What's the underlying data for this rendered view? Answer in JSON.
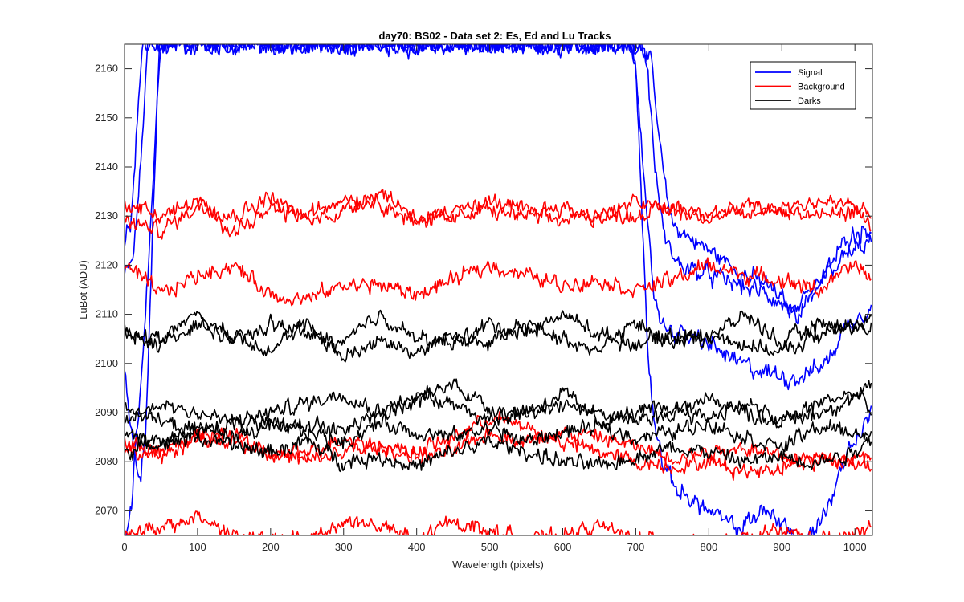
{
  "chart_data": {
    "type": "line",
    "title": "day70: BS02 - Data set 2: Es, Ed and Lu Tracks",
    "xlabel": "Wavelength (pixels)",
    "ylabel": "LuBot (ADU)",
    "xlim": [
      0,
      1024
    ],
    "ylim": [
      2065,
      2165
    ],
    "xticks": [
      0,
      100,
      200,
      300,
      400,
      500,
      600,
      700,
      800,
      900,
      1000
    ],
    "yticks": [
      2070,
      2080,
      2090,
      2100,
      2110,
      2120,
      2130,
      2140,
      2150,
      2160
    ],
    "grid": false,
    "legend_position": "top-right",
    "legend": [
      {
        "label": "Signal",
        "color": "#0000ff"
      },
      {
        "label": "Background",
        "color": "#ff0000"
      },
      {
        "label": "Darks",
        "color": "#000000"
      }
    ],
    "series": [
      {
        "name": "Signal",
        "color": "#0000ff",
        "x": [
          0,
          12,
          22,
          32,
          40,
          48,
          60,
          70,
          100,
          700,
          712,
          722,
          732,
          742,
          752,
          780,
          810,
          850,
          880,
          920,
          960,
          990,
          1024
        ],
        "values": [
          2118,
          2121,
          2140,
          2165,
          2165,
          2165,
          2165,
          2165,
          2165,
          2165,
          2165,
          2160,
          2145,
          2134,
          2128,
          2125,
          2122,
          2118,
          2116,
          2110,
          2118,
          2126,
          2128
        ]
      },
      {
        "name": "Signal",
        "color": "#0000ff",
        "x": [
          0,
          10,
          18,
          26,
          34,
          44,
          56,
          66,
          700,
          708,
          716,
          726,
          740,
          760,
          800,
          840,
          880,
          920,
          960,
          990,
          1024
        ],
        "values": [
          2124,
          2130,
          2150,
          2165,
          2165,
          2165,
          2165,
          2165,
          2165,
          2165,
          2160,
          2140,
          2125,
          2120,
          2118,
          2116,
          2114,
          2110,
          2118,
          2122,
          2125
        ]
      },
      {
        "name": "Signal",
        "color": "#0000ff",
        "x": [
          0,
          6,
          14,
          22,
          30,
          38,
          48,
          690,
          700,
          706,
          714,
          724,
          736,
          760,
          800,
          840,
          880,
          920,
          960,
          990,
          1024
        ],
        "values": [
          2098,
          2090,
          2080,
          2075,
          2090,
          2125,
          2165,
          2165,
          2162,
          2150,
          2130,
          2115,
          2108,
          2106,
          2104,
          2100,
          2098,
          2097,
          2100,
          2108,
          2112
        ]
      },
      {
        "name": "Signal",
        "color": "#0000ff",
        "x": [
          0,
          5,
          10,
          16,
          24,
          36,
          50,
          690,
          700,
          706,
          712,
          718,
          726,
          740,
          760,
          800,
          840,
          870,
          900,
          930,
          960,
          990,
          1024
        ],
        "values": [
          2064,
          2066,
          2072,
          2085,
          2100,
          2130,
          2165,
          2165,
          2160,
          2140,
          2118,
          2100,
          2088,
          2078,
          2074,
          2070,
          2066,
          2070,
          2068,
          2063,
          2070,
          2082,
          2090
        ]
      },
      {
        "name": "Background",
        "color": "#ff0000",
        "x": [
          0,
          50,
          100,
          150,
          200,
          250,
          300,
          350,
          400,
          450,
          500,
          550,
          600,
          650,
          700,
          750,
          800,
          850,
          900,
          950,
          1000,
          1024
        ],
        "values": [
          2133,
          2130,
          2133,
          2127,
          2131,
          2130,
          2134,
          2133,
          2128,
          2132,
          2131,
          2130,
          2129,
          2131,
          2130,
          2132,
          2131,
          2130,
          2132,
          2133,
          2132,
          2130
        ]
      },
      {
        "name": "Background",
        "color": "#ff0000",
        "x": [
          0,
          50,
          100,
          150,
          200,
          250,
          300,
          350,
          400,
          450,
          500,
          550,
          600,
          650,
          700,
          750,
          800,
          850,
          900,
          950,
          1000,
          1024
        ],
        "values": [
          2129,
          2127,
          2132,
          2130,
          2134,
          2129,
          2131,
          2135,
          2130,
          2129,
          2133,
          2131,
          2132,
          2129,
          2133,
          2131,
          2129,
          2132,
          2131,
          2130,
          2131,
          2128
        ]
      },
      {
        "name": "Background",
        "color": "#ff0000",
        "x": [
          0,
          50,
          100,
          150,
          200,
          250,
          300,
          350,
          400,
          450,
          500,
          550,
          600,
          650,
          700,
          750,
          800,
          850,
          900,
          950,
          1000,
          1024
        ],
        "values": [
          2120,
          2114,
          2118,
          2120,
          2114,
          2113,
          2116,
          2116,
          2114,
          2117,
          2120,
          2118,
          2116,
          2117,
          2115,
          2117,
          2120,
          2118,
          2117,
          2115,
          2120,
          2117
        ]
      },
      {
        "name": "Background",
        "color": "#ff0000",
        "x": [
          0,
          50,
          100,
          150,
          200,
          250,
          300,
          350,
          400,
          450,
          500,
          550,
          600,
          650,
          700,
          750,
          800,
          850,
          900,
          950,
          1000,
          1024
        ],
        "values": [
          2084,
          2082,
          2085,
          2086,
          2082,
          2080,
          2082,
          2083,
          2081,
          2082,
          2086,
          2084,
          2086,
          2085,
          2083,
          2081,
          2082,
          2083,
          2081,
          2080,
          2081,
          2082
        ]
      },
      {
        "name": "Background",
        "color": "#ff0000",
        "x": [
          0,
          50,
          100,
          150,
          200,
          250,
          300,
          350,
          400,
          450,
          500,
          550,
          600,
          650,
          700,
          750,
          800,
          850,
          900,
          950,
          1000,
          1024
        ],
        "values": [
          2082,
          2081,
          2085,
          2084,
          2081,
          2082,
          2085,
          2083,
          2082,
          2085,
          2089,
          2087,
          2084,
          2082,
          2080,
          2079,
          2080,
          2078,
          2079,
          2081,
          2080,
          2079
        ]
      },
      {
        "name": "Background",
        "color": "#ff0000",
        "x": [
          0,
          50,
          100,
          150,
          200,
          250,
          300,
          350,
          400,
          450,
          500,
          550,
          600,
          650,
          700,
          750,
          800,
          850,
          900,
          950,
          1000,
          1024
        ],
        "values": [
          2066,
          2066,
          2069,
          2065,
          2064,
          2064,
          2068,
          2067,
          2064,
          2068,
          2066,
          2064,
          2065,
          2067,
          2064,
          2064,
          2063,
          2064,
          2066,
          2064,
          2065,
          2067
        ]
      },
      {
        "name": "Darks",
        "color": "#000000",
        "x": [
          0,
          50,
          100,
          150,
          200,
          250,
          300,
          350,
          400,
          450,
          500,
          550,
          600,
          650,
          700,
          750,
          800,
          850,
          900,
          950,
          1000,
          1024
        ],
        "values": [
          2106,
          2105,
          2110,
          2104,
          2108,
          2106,
          2104,
          2110,
          2105,
          2104,
          2108,
          2106,
          2110,
          2106,
          2104,
          2106,
          2105,
          2110,
          2104,
          2108,
          2107,
          2109
        ]
      },
      {
        "name": "Darks",
        "color": "#000000",
        "x": [
          0,
          50,
          100,
          150,
          200,
          250,
          300,
          350,
          400,
          450,
          500,
          550,
          600,
          650,
          700,
          750,
          800,
          850,
          900,
          950,
          1000,
          1024
        ],
        "values": [
          2107,
          2104,
          2108,
          2106,
          2103,
          2108,
          2101,
          2105,
          2102,
          2106,
          2104,
          2108,
          2105,
          2103,
          2108,
          2104,
          2106,
          2104,
          2102,
          2106,
          2108,
          2107
        ]
      },
      {
        "name": "Darks",
        "color": "#000000",
        "x": [
          0,
          50,
          100,
          150,
          200,
          250,
          300,
          350,
          400,
          450,
          500,
          550,
          600,
          650,
          700,
          750,
          800,
          850,
          900,
          950,
          1000,
          1024
        ],
        "values": [
          2092,
          2088,
          2086,
          2088,
          2087,
          2088,
          2086,
          2090,
          2094,
          2092,
          2088,
          2090,
          2092,
          2090,
          2088,
          2090,
          2093,
          2090,
          2088,
          2090,
          2093,
          2095
        ]
      },
      {
        "name": "Darks",
        "color": "#000000",
        "x": [
          0,
          50,
          100,
          150,
          200,
          250,
          300,
          350,
          400,
          450,
          500,
          550,
          600,
          650,
          700,
          750,
          800,
          850,
          900,
          950,
          1000,
          1024
        ],
        "values": [
          2088,
          2092,
          2090,
          2088,
          2090,
          2092,
          2094,
          2090,
          2092,
          2096,
          2091,
          2090,
          2094,
          2088,
          2090,
          2091,
          2089,
          2092,
          2088,
          2092,
          2094,
          2090
        ]
      },
      {
        "name": "Darks",
        "color": "#000000",
        "x": [
          0,
          50,
          100,
          150,
          200,
          250,
          300,
          350,
          400,
          450,
          500,
          550,
          600,
          650,
          700,
          750,
          800,
          850,
          900,
          950,
          1000,
          1024
        ],
        "values": [
          2085,
          2084,
          2087,
          2085,
          2087,
          2086,
          2084,
          2088,
          2086,
          2085,
          2087,
          2084,
          2086,
          2087,
          2085,
          2086,
          2088,
          2085,
          2083,
          2087,
          2086,
          2084
        ]
      },
      {
        "name": "Darks",
        "color": "#000000",
        "x": [
          0,
          50,
          100,
          150,
          200,
          250,
          300,
          350,
          400,
          450,
          500,
          550,
          600,
          650,
          700,
          750,
          800,
          850,
          900,
          950,
          1000,
          1024
        ],
        "values": [
          2082,
          2084,
          2085,
          2083,
          2082,
          2084,
          2080,
          2081,
          2079,
          2082,
          2084,
          2082,
          2080,
          2079,
          2081,
          2083,
          2082,
          2080,
          2081,
          2080,
          2082,
          2086
        ]
      }
    ]
  }
}
